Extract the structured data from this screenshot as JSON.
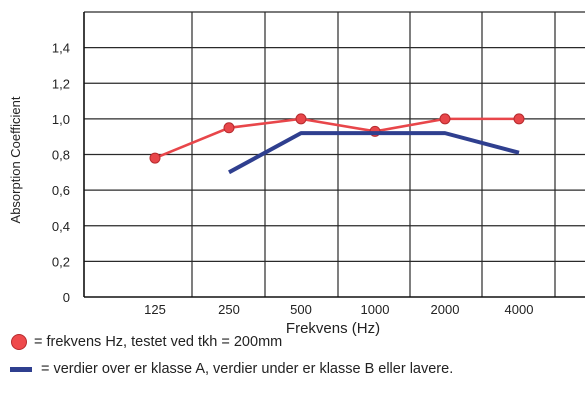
{
  "chart_data": {
    "type": "line",
    "categories": [
      "125",
      "250",
      "500",
      "1000",
      "2000",
      "4000"
    ],
    "series": [
      {
        "name": "frekvens Hz, testet ved tkh = 200mm",
        "color": "#e8464a",
        "marker": "circle",
        "values": [
          0.78,
          0.95,
          1.0,
          0.93,
          1.0,
          1.0
        ]
      },
      {
        "name": "verdier over er klasse A, verdier under er klasse B eller lavere.",
        "color": "#2f3f8f",
        "marker": "none",
        "values": [
          null,
          0.7,
          0.92,
          0.92,
          0.92,
          0.81
        ]
      }
    ],
    "yticks": [
      "0",
      "0,2",
      "0,4",
      "0,6",
      "0,8",
      "1,0",
      "1,2",
      "1,4"
    ],
    "xlabel": "Frekvens (Hz)",
    "ylabel": "Absorption Coefficient",
    "ylim": [
      0,
      1.6
    ],
    "grid": true
  },
  "legend": {
    "dot_text": "= frekvens Hz, testet ved tkh = 200mm",
    "line_text": "= verdier over er klasse A, verdier under er klasse B eller lavere."
  }
}
